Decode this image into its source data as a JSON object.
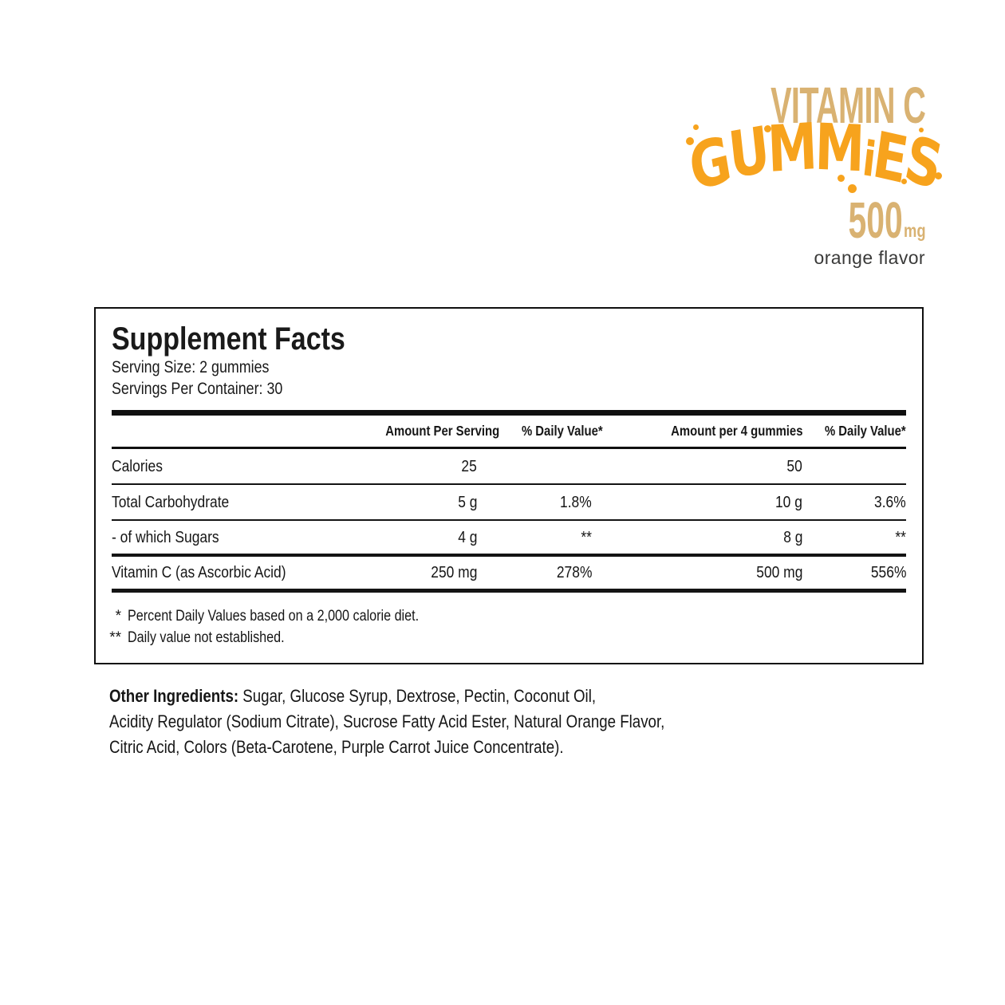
{
  "brand": {
    "product_line": "VITAMIN C",
    "wordmark": "GUMMIES",
    "wordmark_letters": [
      "G",
      "U",
      "M",
      "M",
      "i",
      "E",
      "S"
    ],
    "dosage_value": "500",
    "dosage_unit": "mg",
    "flavor": "orange flavor",
    "colors": {
      "tan": "#D9B272",
      "orange": "#F7A31D",
      "ink": "#101010",
      "flavor_text": "#3A3A39"
    }
  },
  "panel": {
    "title": "Supplement Facts",
    "serving_size": "Serving Size: 2 gummies",
    "servings_per_container": "Servings Per Container: 30",
    "headers": {
      "amount_per_serving": "Amount Per Serving",
      "daily_value_serving": "% Daily Value*",
      "amount_per_4": "Amount per 4 gummies",
      "daily_value_4": "% Daily Value*"
    },
    "rows": [
      {
        "name": "Calories",
        "aps": "25",
        "dvs": "",
        "ap4": "50",
        "dv4": ""
      },
      {
        "name": "Total Carbohydrate",
        "aps": "5 g",
        "dvs": "1.8%",
        "ap4": "10 g",
        "dv4": "3.6%"
      },
      {
        "name": "- of which Sugars",
        "aps": "4 g",
        "dvs": "**",
        "ap4": "8 g",
        "dv4": "**"
      },
      {
        "name": "Vitamin C (as Ascorbic Acid)",
        "aps": "250 mg",
        "dvs": "278%",
        "ap4": "500 mg",
        "dv4": "556%"
      }
    ],
    "footnotes": [
      {
        "marker": "*",
        "text": "Percent Daily Values based on a 2,000 calorie diet."
      },
      {
        "marker": "**",
        "text": "Daily value not established."
      }
    ]
  },
  "other_ingredients": {
    "label": "Other Ingredients:",
    "line1_rest": "Sugar, Glucose Syrup, Dextrose, Pectin, Coconut Oil,",
    "line2": "Acidity Regulator (Sodium Citrate), Sucrose Fatty Acid Ester, Natural Orange Flavor,",
    "line3": "Citric Acid, Colors (Beta-Carotene, Purple Carrot Juice Concentrate)."
  }
}
